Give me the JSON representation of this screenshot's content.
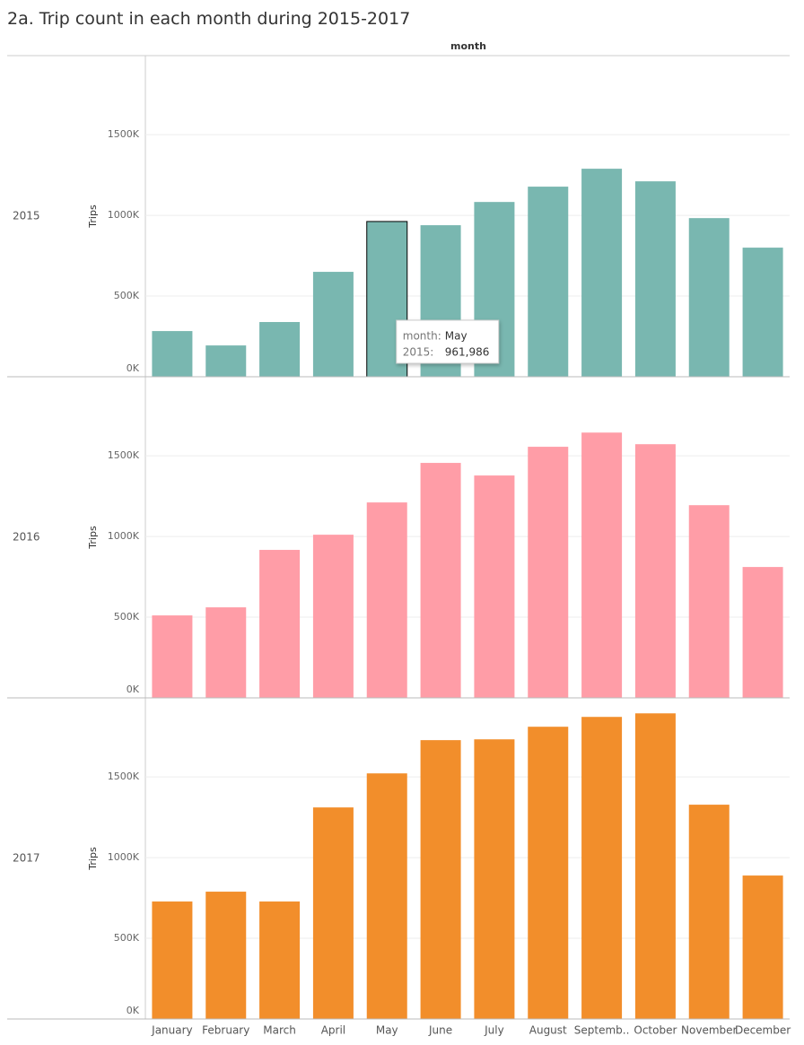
{
  "chart_data": {
    "type": "bar",
    "title": "2a. Trip count in each month during 2015-2017",
    "x_label": "month",
    "y_label": "Trips",
    "categories": [
      "January",
      "February",
      "March",
      "April",
      "May",
      "June",
      "July",
      "August",
      "Septemb..",
      "October",
      "November",
      "December"
    ],
    "series": [
      {
        "name": "2015",
        "color": "#79b7b0",
        "values": [
          283000,
          194000,
          339000,
          650000,
          961986,
          939000,
          1083000,
          1178000,
          1289000,
          1211000,
          983000,
          800000
        ]
      },
      {
        "name": "2016",
        "color": "#ff9da7",
        "values": [
          511000,
          561000,
          917000,
          1011000,
          1211000,
          1456000,
          1378000,
          1556000,
          1644000,
          1572000,
          1194000,
          811000
        ]
      },
      {
        "name": "2017",
        "color": "#f28e2b",
        "values": [
          728000,
          789000,
          728000,
          1311000,
          1522000,
          1728000,
          1733000,
          1811000,
          1872000,
          1894000,
          1328000,
          889000
        ]
      }
    ],
    "ylim": [
      0,
      1990000
    ],
    "yticks": [
      {
        "value": 0,
        "label": "0K"
      },
      {
        "value": 500000,
        "label": "500K"
      },
      {
        "value": 1000000,
        "label": "1000K"
      },
      {
        "value": 1500000,
        "label": "1500K"
      }
    ],
    "grid": true,
    "tooltip": {
      "month_label": "month:",
      "month": "May",
      "series_label": "2015:",
      "value": {
        "value": 961986,
        "label": "961,986"
      }
    }
  }
}
